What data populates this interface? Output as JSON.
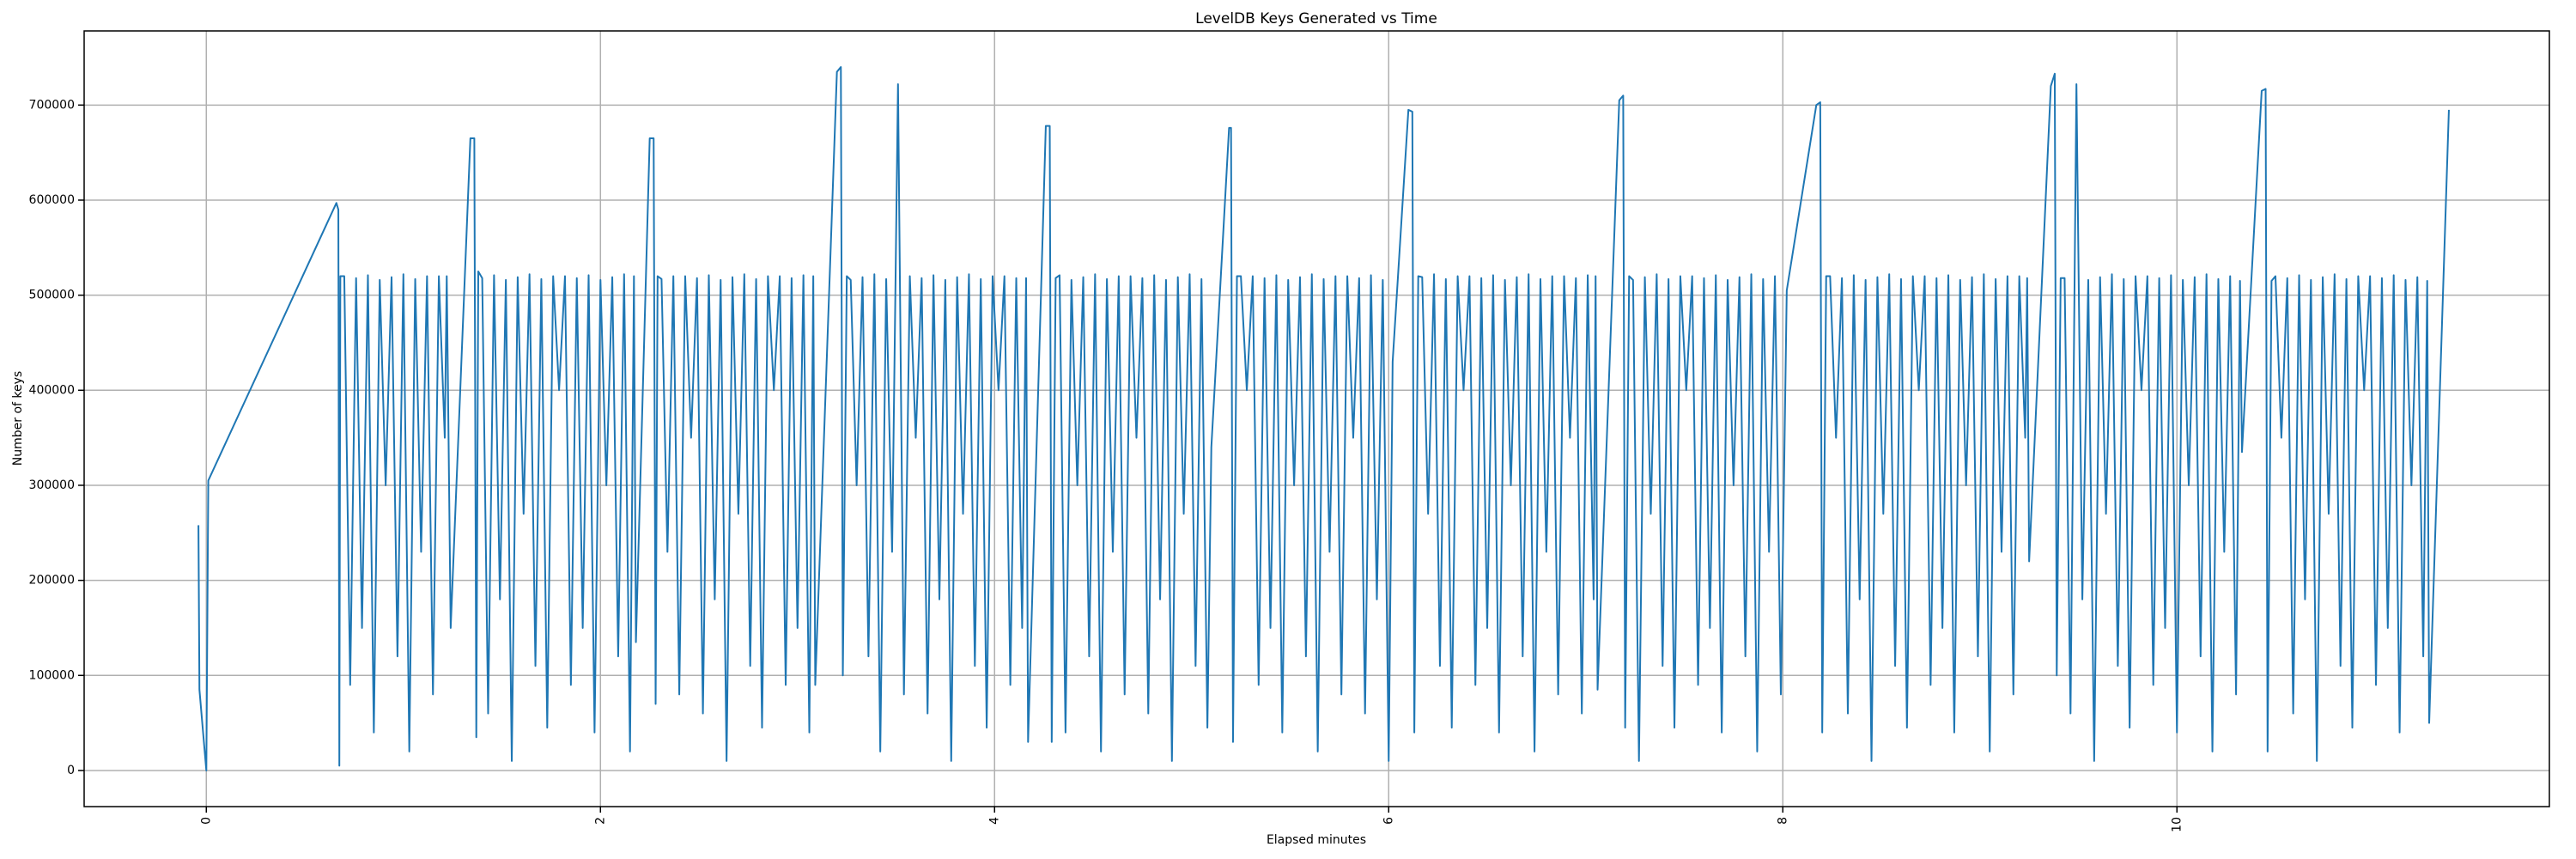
{
  "chart_data": {
    "type": "line",
    "title": "LevelDB Keys Generated vs Time",
    "xlabel": "Elapsed minutes",
    "ylabel": "Number of keys",
    "xlim": [
      -0.62,
      11.89
    ],
    "ylim": [
      -38000,
      778000
    ],
    "xticks": [
      0,
      2,
      4,
      6,
      8,
      10
    ],
    "yticks": [
      0,
      100000,
      200000,
      300000,
      400000,
      500000,
      600000,
      700000
    ],
    "grid": true,
    "x": [
      -0.04,
      -0.035,
      0,
      0.01,
      0.66,
      0.67,
      0.675,
      0.68,
      0.7,
      0.73,
      0.76,
      0.79,
      0.82,
      0.85,
      0.88,
      0.91,
      0.94,
      0.97,
      1,
      1.03,
      1.06,
      1.09,
      1.12,
      1.15,
      1.18,
      1.21,
      1.22,
      1.24,
      1.34,
      1.36,
      1.37,
      1.38,
      1.4,
      1.43,
      1.46,
      1.49,
      1.52,
      1.55,
      1.58,
      1.61,
      1.64,
      1.67,
      1.7,
      1.73,
      1.76,
      1.79,
      1.82,
      1.85,
      1.88,
      1.91,
      1.94,
      1.97,
      2,
      2.03,
      2.06,
      2.09,
      2.12,
      2.15,
      2.17,
      2.18,
      2.25,
      2.27,
      2.28,
      2.29,
      2.31,
      2.34,
      2.37,
      2.4,
      2.43,
      2.46,
      2.49,
      2.52,
      2.55,
      2.58,
      2.61,
      2.64,
      2.67,
      2.7,
      2.73,
      2.76,
      2.79,
      2.82,
      2.85,
      2.88,
      2.91,
      2.94,
      2.97,
      3,
      3.03,
      3.06,
      3.08,
      3.09,
      3.2,
      3.22,
      3.23,
      3.25,
      3.27,
      3.3,
      3.33,
      3.36,
      3.39,
      3.42,
      3.45,
      3.48,
      3.51,
      3.54,
      3.57,
      3.6,
      3.63,
      3.66,
      3.69,
      3.72,
      3.75,
      3.78,
      3.81,
      3.84,
      3.87,
      3.9,
      3.93,
      3.96,
      3.99,
      4.02,
      4.05,
      4.08,
      4.11,
      4.14,
      4.16,
      4.17,
      4.26,
      4.28,
      4.29,
      4.31,
      4.33,
      4.36,
      4.39,
      4.42,
      4.45,
      4.48,
      4.51,
      4.54,
      4.57,
      4.6,
      4.63,
      4.66,
      4.69,
      4.72,
      4.75,
      4.78,
      4.81,
      4.84,
      4.87,
      4.9,
      4.93,
      4.96,
      4.99,
      5.02,
      5.05,
      5.08,
      5.1,
      5.19,
      5.2,
      5.21,
      5.23,
      5.25,
      5.28,
      5.31,
      5.34,
      5.37,
      5.4,
      5.43,
      5.46,
      5.49,
      5.52,
      5.55,
      5.58,
      5.61,
      5.64,
      5.67,
      5.7,
      5.73,
      5.76,
      5.79,
      5.82,
      5.85,
      5.88,
      5.91,
      5.94,
      5.97,
      6,
      6.02,
      6.1,
      6.12,
      6.13,
      6.15,
      6.17,
      6.2,
      6.23,
      6.26,
      6.29,
      6.32,
      6.35,
      6.38,
      6.41,
      6.44,
      6.47,
      6.5,
      6.53,
      6.56,
      6.59,
      6.62,
      6.65,
      6.68,
      6.71,
      6.74,
      6.77,
      6.8,
      6.83,
      6.86,
      6.89,
      6.92,
      6.95,
      6.98,
      7.01,
      7.04,
      7.05,
      7.06,
      7.17,
      7.19,
      7.2,
      7.22,
      7.24,
      7.27,
      7.3,
      7.33,
      7.36,
      7.39,
      7.42,
      7.45,
      7.48,
      7.51,
      7.54,
      7.57,
      7.6,
      7.63,
      7.66,
      7.69,
      7.72,
      7.75,
      7.78,
      7.81,
      7.84,
      7.87,
      7.9,
      7.93,
      7.96,
      7.99,
      8.02,
      8.17,
      8.19,
      8.2,
      8.22,
      8.24,
      8.27,
      8.3,
      8.33,
      8.36,
      8.39,
      8.42,
      8.45,
      8.48,
      8.51,
      8.54,
      8.57,
      8.6,
      8.63,
      8.66,
      8.69,
      8.72,
      8.75,
      8.78,
      8.81,
      8.84,
      8.87,
      8.9,
      8.93,
      8.96,
      8.99,
      9.02,
      9.05,
      9.08,
      9.11,
      9.14,
      9.17,
      9.2,
      9.23,
      9.24,
      9.25,
      9.36,
      9.38,
      9.39,
      9.41,
      9.43,
      9.46,
      9.49,
      9.52,
      9.55,
      9.58,
      9.61,
      9.64,
      9.67,
      9.7,
      9.73,
      9.76,
      9.79,
      9.82,
      9.85,
      9.88,
      9.91,
      9.94,
      9.97,
      10,
      10.03,
      10.06,
      10.09,
      10.12,
      10.15,
      10.18,
      10.21,
      10.24,
      10.27,
      10.3,
      10.32,
      10.33,
      10.43,
      10.45,
      10.46,
      10.48,
      10.5,
      10.53,
      10.56,
      10.59,
      10.62,
      10.65,
      10.68,
      10.71,
      10.74,
      10.77,
      10.8,
      10.83,
      10.86,
      10.89,
      10.92,
      10.95,
      10.98,
      11.01,
      11.04,
      11.07,
      11.1,
      11.13,
      11.16,
      11.19,
      11.22,
      11.25,
      11.27,
      11.28,
      11.38
    ],
    "series": [
      {
        "color": "#1f77b4",
        "values": [
          258000,
          85000,
          0,
          305000,
          597000,
          590000,
          5000,
          520000,
          520000,
          90000,
          518000,
          150000,
          521000,
          40000,
          516000,
          300000,
          519000,
          120000,
          522000,
          20000,
          517000,
          230000,
          520000,
          80000,
          520000,
          350000,
          520000,
          150000,
          665000,
          665000,
          35000,
          525000,
          518000,
          60000,
          521000,
          180000,
          516000,
          10000,
          519000,
          270000,
          522000,
          110000,
          517000,
          45000,
          520000,
          400000,
          520000,
          90000,
          518000,
          150000,
          521000,
          40000,
          516000,
          300000,
          519000,
          120000,
          522000,
          20000,
          520000,
          135000,
          665000,
          665000,
          70000,
          520000,
          517000,
          230000,
          520000,
          80000,
          520000,
          350000,
          518000,
          60000,
          521000,
          180000,
          516000,
          10000,
          519000,
          270000,
          522000,
          110000,
          517000,
          45000,
          520000,
          400000,
          520000,
          90000,
          518000,
          150000,
          521000,
          40000,
          520000,
          90000,
          735000,
          740000,
          100000,
          520000,
          516000,
          300000,
          519000,
          120000,
          522000,
          20000,
          517000,
          230000,
          722000,
          80000,
          520000,
          350000,
          518000,
          60000,
          521000,
          180000,
          516000,
          10000,
          519000,
          270000,
          522000,
          110000,
          517000,
          45000,
          520000,
          400000,
          520000,
          90000,
          518000,
          150000,
          518000,
          30000,
          678000,
          678000,
          30000,
          518000,
          521000,
          40000,
          516000,
          300000,
          519000,
          120000,
          522000,
          20000,
          517000,
          230000,
          520000,
          80000,
          520000,
          350000,
          518000,
          60000,
          521000,
          180000,
          516000,
          10000,
          519000,
          270000,
          522000,
          110000,
          517000,
          45000,
          340000,
          676000,
          676000,
          30000,
          520000,
          520000,
          400000,
          520000,
          90000,
          518000,
          150000,
          521000,
          40000,
          516000,
          300000,
          519000,
          120000,
          522000,
          20000,
          517000,
          230000,
          520000,
          80000,
          520000,
          350000,
          518000,
          60000,
          521000,
          180000,
          516000,
          10000,
          430000,
          695000,
          693000,
          40000,
          520000,
          519000,
          270000,
          522000,
          110000,
          517000,
          45000,
          520000,
          400000,
          520000,
          90000,
          518000,
          150000,
          521000,
          40000,
          516000,
          300000,
          519000,
          120000,
          522000,
          20000,
          517000,
          230000,
          520000,
          80000,
          520000,
          350000,
          518000,
          60000,
          521000,
          180000,
          520000,
          85000,
          705000,
          710000,
          45000,
          520000,
          516000,
          10000,
          519000,
          270000,
          522000,
          110000,
          517000,
          45000,
          520000,
          400000,
          520000,
          90000,
          518000,
          150000,
          521000,
          40000,
          516000,
          300000,
          519000,
          120000,
          522000,
          20000,
          517000,
          230000,
          520000,
          80000,
          505000,
          700000,
          703000,
          40000,
          520000,
          520000,
          350000,
          518000,
          60000,
          521000,
          180000,
          516000,
          10000,
          519000,
          270000,
          522000,
          110000,
          517000,
          45000,
          520000,
          400000,
          520000,
          90000,
          518000,
          150000,
          521000,
          40000,
          516000,
          300000,
          519000,
          120000,
          522000,
          20000,
          517000,
          230000,
          520000,
          80000,
          520000,
          350000,
          518000,
          220000,
          720000,
          733000,
          100000,
          518000,
          518000,
          60000,
          722000,
          180000,
          516000,
          10000,
          519000,
          270000,
          522000,
          110000,
          517000,
          45000,
          520000,
          400000,
          520000,
          90000,
          518000,
          150000,
          521000,
          40000,
          516000,
          300000,
          519000,
          120000,
          522000,
          20000,
          517000,
          230000,
          520000,
          80000,
          515000,
          335000,
          715000,
          717000,
          20000,
          515000,
          520000,
          350000,
          518000,
          60000,
          521000,
          180000,
          516000,
          10000,
          519000,
          270000,
          522000,
          110000,
          517000,
          45000,
          520000,
          400000,
          520000,
          90000,
          518000,
          150000,
          521000,
          40000,
          516000,
          300000,
          519000,
          120000,
          515000,
          50000,
          695000
        ]
      }
    ]
  }
}
